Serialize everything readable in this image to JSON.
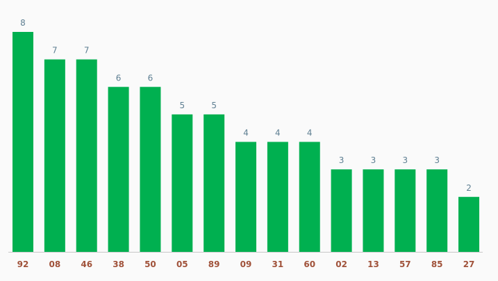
{
  "chart_data": {
    "type": "bar",
    "categories": [
      "92",
      "08",
      "46",
      "38",
      "50",
      "05",
      "89",
      "09",
      "31",
      "60",
      "02",
      "13",
      "57",
      "85",
      "27"
    ],
    "values": [
      8,
      7,
      7,
      6,
      6,
      5,
      5,
      4,
      4,
      4,
      3,
      3,
      3,
      3,
      2
    ],
    "color": "#00b050"
  }
}
